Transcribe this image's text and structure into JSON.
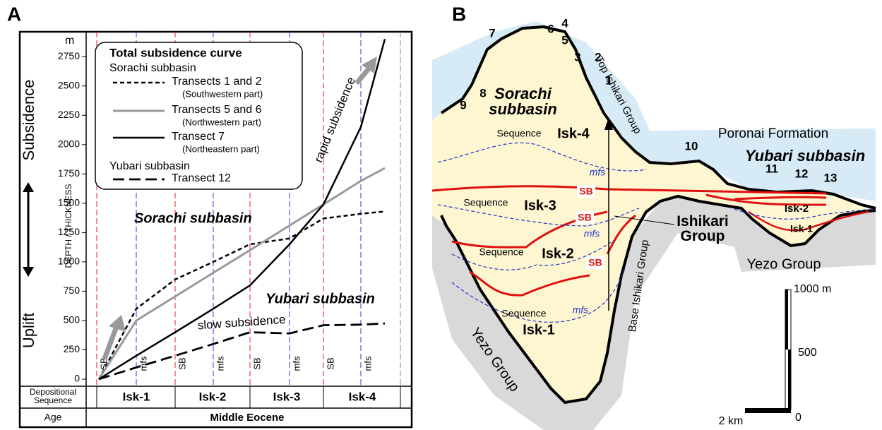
{
  "panel_a": {
    "label": "A",
    "chart_data": {
      "type": "line",
      "title": "Total subsidence curve",
      "legend_groups": [
        "Sorachi subbasin",
        "Yubari subbasin"
      ],
      "y_unit": "m",
      "ylabel": "DEPTH / THICKNESS",
      "direction_labels": [
        "Subsidence",
        "Uplift"
      ],
      "categories": [
        "SB",
        "mfs",
        "SB",
        "mfs",
        "SB",
        "mfs",
        "SB",
        "mfs",
        null
      ],
      "series": [
        {
          "name": "Transects 1 and 2",
          "note": "(Southwestern part)",
          "color": "#000000",
          "line_style": "dashed",
          "values": [
            0,
            600,
            850,
            1000,
            1150,
            1200,
            1370,
            1410,
            1430
          ]
        },
        {
          "name": "Transects 5 and 6",
          "note": "(Northwestern part)",
          "color": "#999999",
          "line_style": "solid",
          "values": [
            0,
            500,
            705,
            907,
            1100,
            1310,
            1490,
            1690,
            1800
          ]
        },
        {
          "name": "Transect 7",
          "note": "(Northeastern part)",
          "color": "#000000",
          "line_style": "solid",
          "values": [
            0,
            200,
            400,
            600,
            800,
            1150,
            1490,
            2150,
            2900
          ]
        },
        {
          "name": "Transect 12",
          "color": "#000000",
          "line_style": "long-dashed",
          "values": [
            0,
            100,
            200,
            300,
            400,
            390,
            460,
            465,
            475
          ]
        }
      ],
      "ylim": [
        0,
        2950
      ],
      "yticks": [
        0,
        250,
        500,
        750,
        1000,
        1250,
        1500,
        1750,
        2000,
        2250,
        2500,
        2750
      ],
      "annotations": [
        "Sorachi subbasin",
        "Yubari subbasin",
        "slow subsidence",
        "rapid subsidence"
      ],
      "table": {
        "row_labels": [
          "Depositional Sequence",
          "Age"
        ],
        "sequences": [
          "Isk-1",
          "Isk-2",
          "Isk-3",
          "Isk-4"
        ],
        "age": "Middle Eocene"
      }
    }
  },
  "panel_b": {
    "label": "B",
    "numbers": [
      "7",
      "6",
      "4",
      "5",
      "3",
      "2",
      "1",
      "8",
      "9",
      "10",
      "11",
      "12",
      "13"
    ],
    "sorachi": "Sorachi subbasin",
    "yubari": "Yubari subbasin",
    "top_group": "Top Ishikari Group",
    "base_group": "Base Ishikari Group",
    "poronai": "Poronai Formation",
    "ishikari": "Ishikari Group",
    "yezo": [
      "Yezo Group",
      "Yezo Group"
    ],
    "sequence_word": [
      "Sequence",
      "Sequence",
      "Sequence",
      "Sequence"
    ],
    "sequences": [
      "Isk-4",
      "Isk-3",
      "Isk-2",
      "Isk-1"
    ],
    "yubari_sequences": [
      "Isk-2",
      "Isk-1"
    ],
    "mfs": [
      "mfs",
      "mfs",
      "mfs"
    ],
    "sb": [
      "SB",
      "SB",
      "SB"
    ],
    "scale": {
      "top": "1000 m",
      "mid": "500",
      "zero": "0",
      "km": "2 km"
    }
  }
}
